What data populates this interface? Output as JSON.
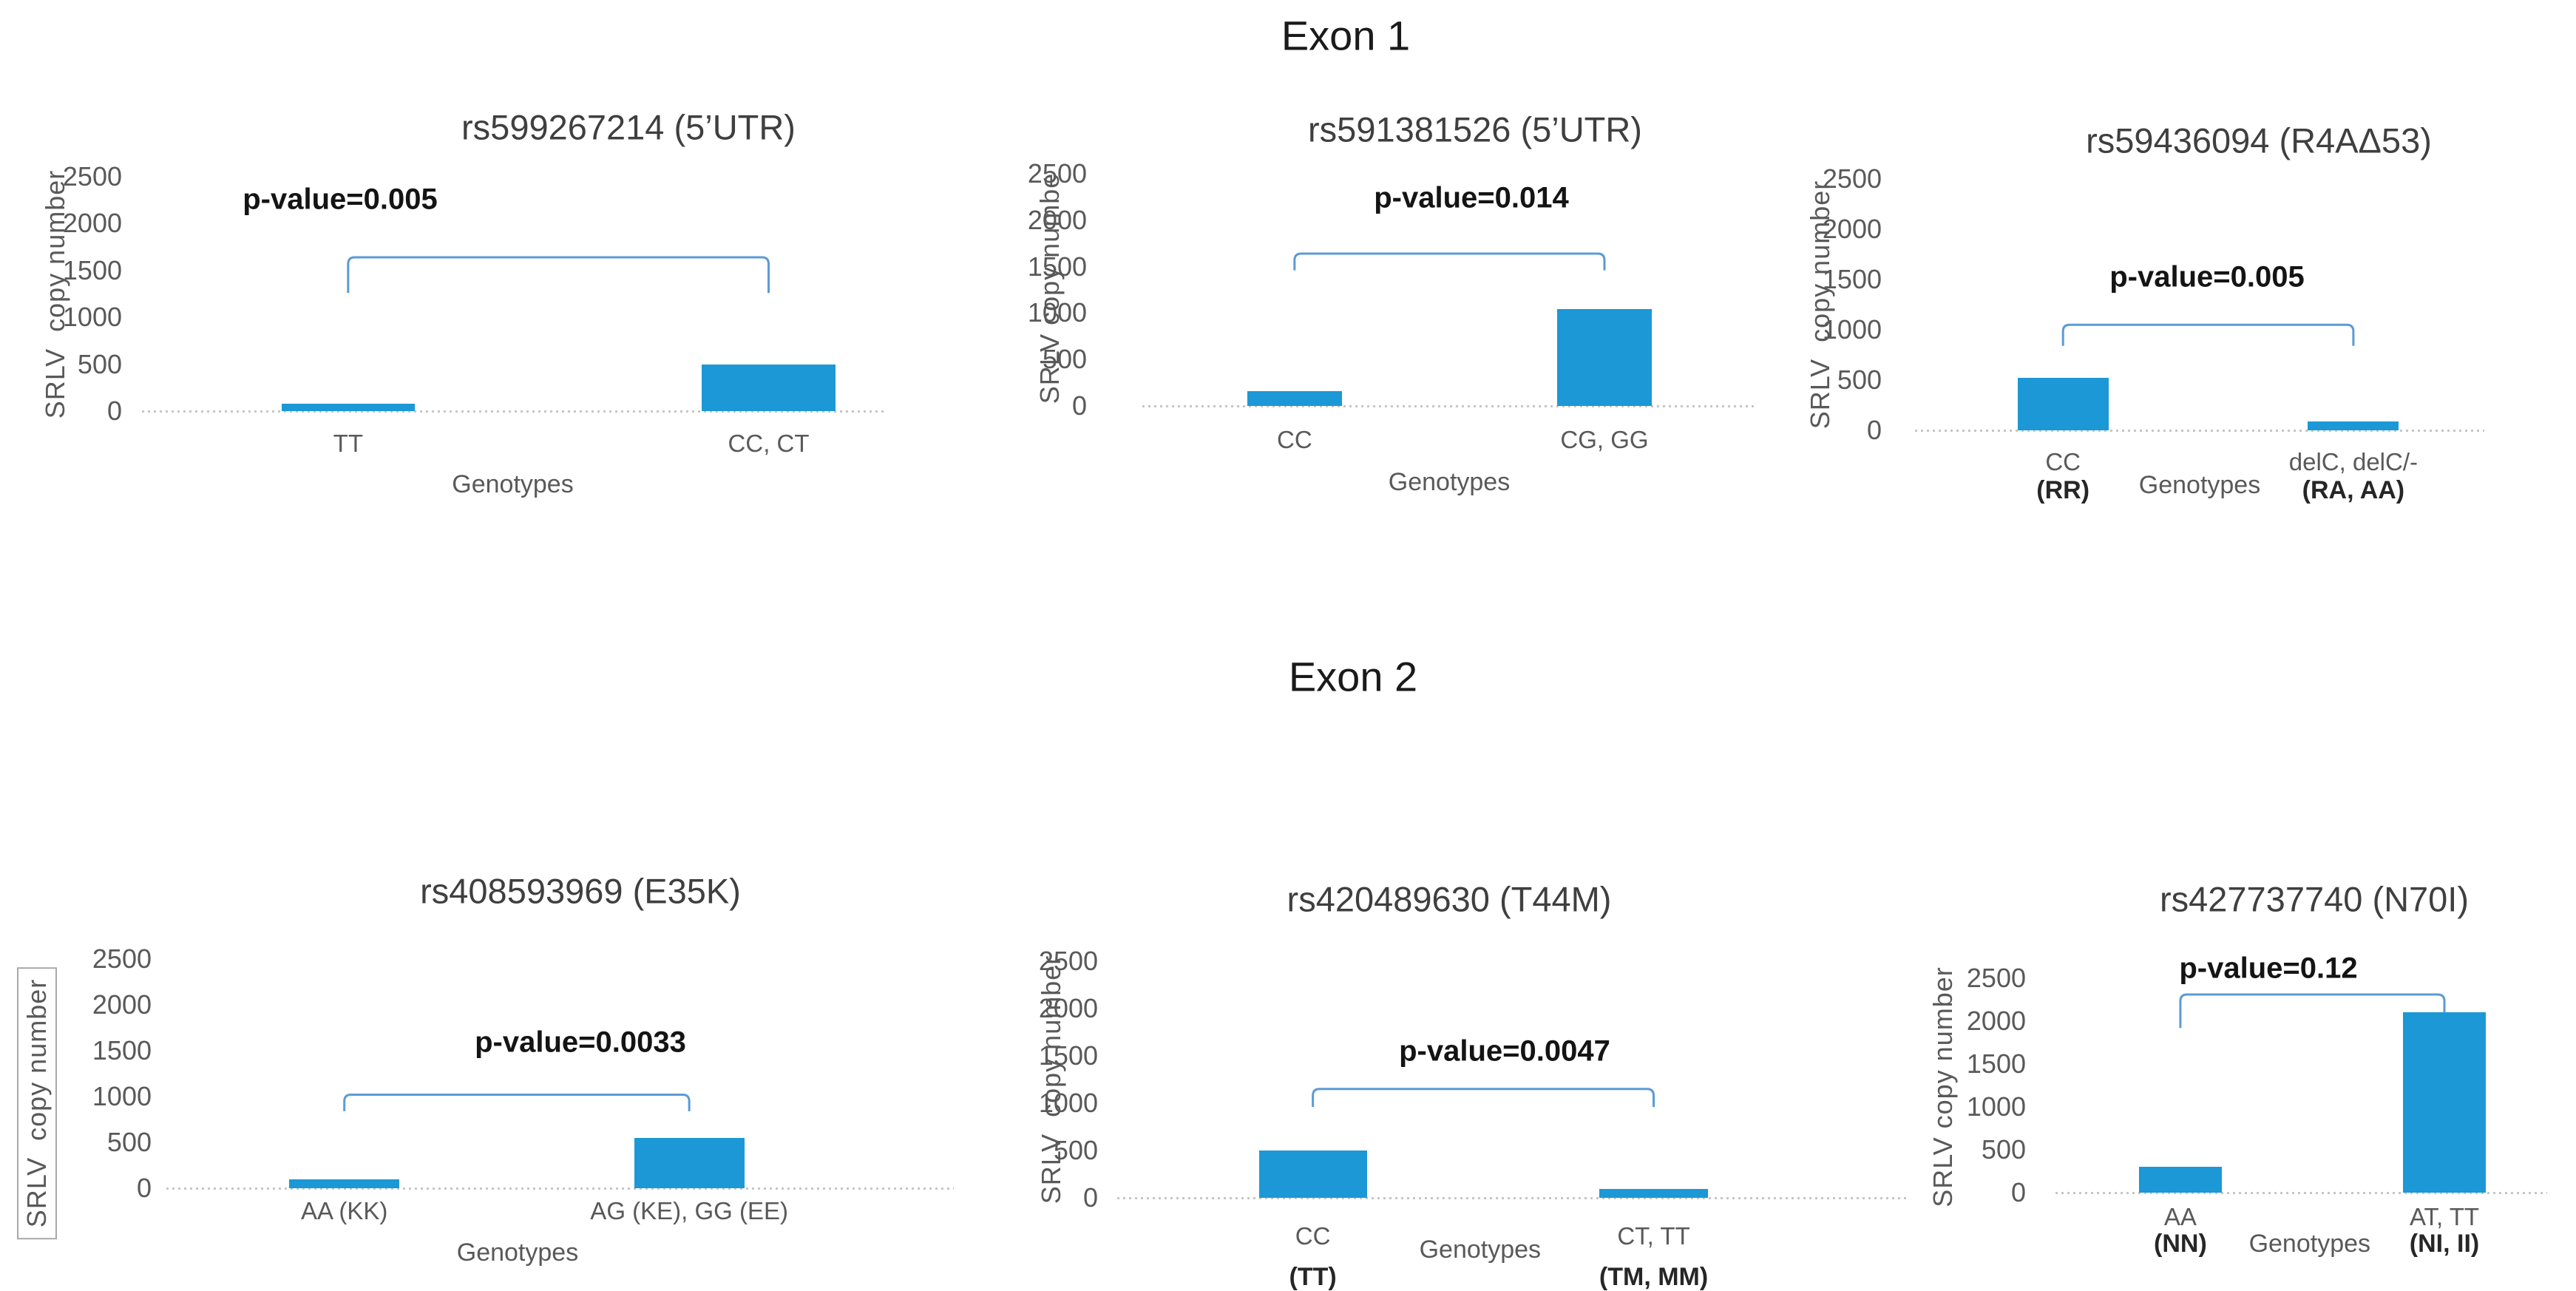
{
  "figure": {
    "sections": [
      {
        "heading": "Exon 1"
      },
      {
        "heading": "Exon 2"
      }
    ]
  },
  "colors": {
    "bar_fill": "#1b98d5",
    "bracket_stroke": "#5b9bd5",
    "baseline": "#c6c6c6",
    "tick_text": "#595959",
    "title_text": "#3f3f3f",
    "pvalue_text": "#141414"
  },
  "chart_data": [
    {
      "type": "bar",
      "section": "Exon 1",
      "title": "rs599267214 (5’UTR)",
      "p_value_label": "p-value=0.005",
      "ylabel": "SRLV  copy number",
      "xlabel": "Genotypes",
      "categories": [
        "TT",
        "CC, CT"
      ],
      "category_sublabels": [
        "",
        ""
      ],
      "values": [
        80,
        500
      ],
      "yticks": [
        0,
        500,
        1000,
        1500,
        2000,
        2500
      ],
      "ylim": [
        0,
        2500
      ],
      "grid": false,
      "legend": "none",
      "bracket": {
        "top": 1640,
        "left_end": 1260,
        "right_end": 1260
      }
    },
    {
      "type": "bar",
      "section": "Exon 1",
      "title": "rs591381526 (5’UTR)",
      "p_value_label": "p-value=0.014",
      "ylabel": "SRLV copy numbe",
      "xlabel": "Genotypes",
      "categories": [
        "CC",
        "CG, GG"
      ],
      "category_sublabels": [
        "",
        ""
      ],
      "values": [
        160,
        1040
      ],
      "yticks": [
        0,
        500,
        1000,
        1500,
        2000,
        2500
      ],
      "ylim": [
        0,
        2500
      ],
      "grid": false,
      "legend": "none",
      "bracket": {
        "top": 1640,
        "left_end": 1460,
        "right_end": 1460
      }
    },
    {
      "type": "bar",
      "section": "Exon 1",
      "title": "rs59436094 (R4AΔ53)",
      "p_value_label": "p-value=0.005",
      "ylabel": "SRLV  copy number",
      "xlabel": "Genotypes",
      "categories": [
        "CC",
        "delC, delC/-"
      ],
      "category_sublabels": [
        "(RR)",
        "(RA, AA)"
      ],
      "values": [
        520,
        90
      ],
      "yticks": [
        0,
        500,
        1000,
        1500,
        2000,
        2500
      ],
      "ylim": [
        0,
        2500
      ],
      "grid": false,
      "legend": "none",
      "bracket": {
        "top": 1050,
        "left_end": 840,
        "right_end": 840
      }
    },
    {
      "type": "bar",
      "section": "Exon 2",
      "title": "rs408593969 (E35K)",
      "p_value_label": "p-value=0.0033",
      "ylabel": "SRLV  copy number",
      "xlabel": "Genotypes",
      "categories": [
        "AA (KK)",
        "AG (KE), GG (EE)"
      ],
      "category_sublabels": [
        "",
        ""
      ],
      "values": [
        100,
        550
      ],
      "yticks": [
        0,
        500,
        1000,
        1500,
        2000,
        2500
      ],
      "ylim": [
        0,
        2500
      ],
      "grid": false,
      "legend": "none",
      "bracket": {
        "top": 1020,
        "left_end": 840,
        "right_end": 840
      }
    },
    {
      "type": "bar",
      "section": "Exon 2",
      "title": "rs420489630 (T44M)",
      "p_value_label": "p-value=0.0047",
      "ylabel": "SRLV  copy number",
      "xlabel": "Genotypes",
      "categories": [
        "CC",
        "CT, TT"
      ],
      "category_sublabels": [
        "(TT)",
        "(TM, MM)"
      ],
      "values": [
        500,
        90
      ],
      "yticks": [
        0,
        500,
        1000,
        1500,
        2000,
        2500
      ],
      "ylim": [
        0,
        2500
      ],
      "grid": false,
      "legend": "none",
      "bracket": {
        "top": 1150,
        "left_end": 960,
        "right_end": 960
      }
    },
    {
      "type": "bar",
      "section": "Exon 2",
      "title": "rs427737740 (N70I)",
      "p_value_label": "p-value=0.12",
      "ylabel": "SRLV copy number",
      "xlabel": "Genotypes",
      "categories": [
        "AA",
        "AT, TT"
      ],
      "category_sublabels": [
        "(NN)",
        "(NI, II)"
      ],
      "values": [
        300,
        2100
      ],
      "yticks": [
        0,
        500,
        1000,
        1500,
        2000,
        2500
      ],
      "ylim": [
        0,
        2500
      ],
      "grid": false,
      "legend": "none",
      "bracket": {
        "top": 2310,
        "left_end": 1920,
        "right_end": 2100
      }
    }
  ]
}
